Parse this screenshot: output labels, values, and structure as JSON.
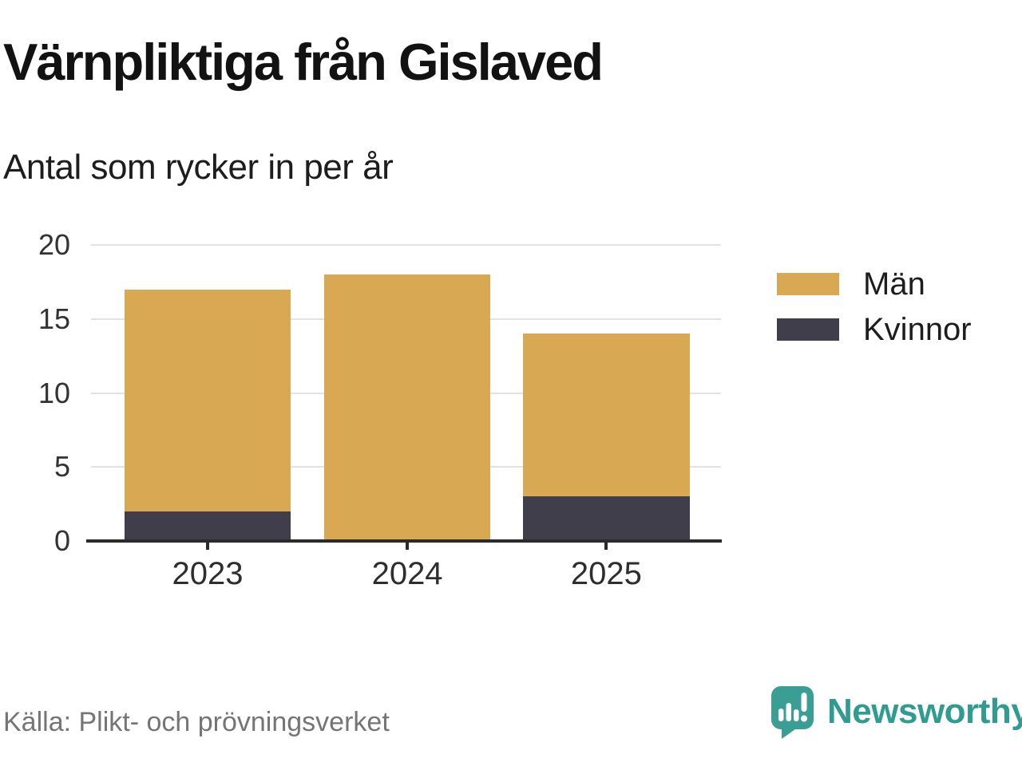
{
  "header": {
    "title": "Värnpliktiga från Gislaved",
    "subtitle": "Antal som rycker in per år"
  },
  "footer": {
    "source": "Källa: Plikt- och prövningsverket",
    "brand_name": "Newsworthy",
    "brand_icon": "newsworthy-speech-bubble-bar-chart-icon"
  },
  "colors": {
    "man_gold": "#d9a852",
    "kvinnor_dark": "#413e4c",
    "brand_teal": "#3a9e94",
    "gridline": "#e2e2e2",
    "axis": "#2b2b2b",
    "axis_text": "#333333",
    "source_text": "#757575"
  },
  "chart_data": {
    "type": "bar",
    "stacked": true,
    "title": "Värnpliktiga från Gislaved",
    "subtitle": "Antal som rycker in per år",
    "categories": [
      "2023",
      "2024",
      "2025"
    ],
    "series": [
      {
        "name": "Kvinnor",
        "color": "#413e4c",
        "values": [
          2,
          0,
          3
        ]
      },
      {
        "name": "Män",
        "color": "#d9a852",
        "values": [
          15,
          18,
          11
        ]
      }
    ],
    "totals": [
      17,
      18,
      14
    ],
    "xlabel": "",
    "ylabel": "",
    "ylim": [
      0,
      20
    ],
    "yticks": [
      0,
      5,
      10,
      15,
      20
    ],
    "grid": true,
    "legend": {
      "position": "right",
      "entries": [
        {
          "label": "Män",
          "color": "#d9a852"
        },
        {
          "label": "Kvinnor",
          "color": "#413e4c"
        }
      ]
    }
  }
}
